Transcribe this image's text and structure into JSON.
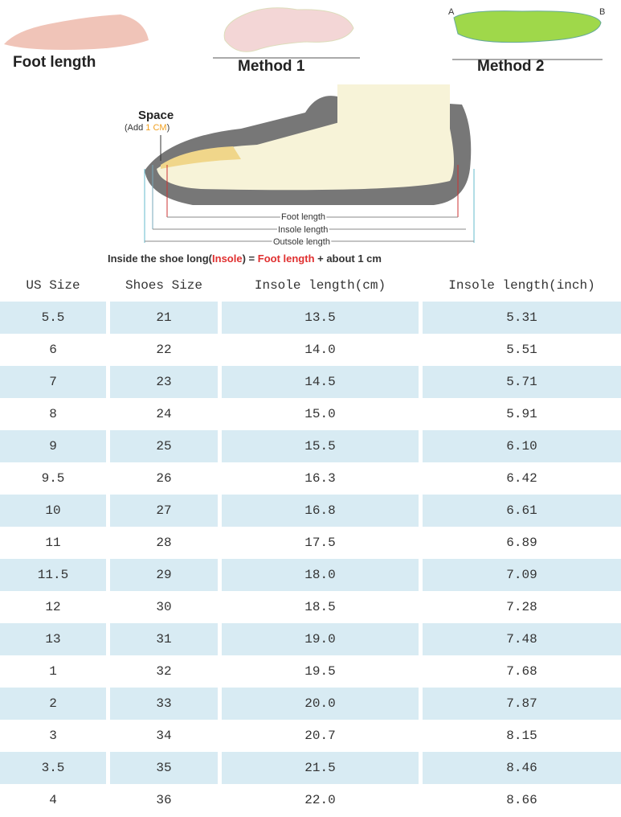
{
  "header": {
    "foot_length": "Foot length",
    "method_1": "Method 1",
    "method_2": "Method 2",
    "insole_end_a": "A",
    "insole_end_b": "B"
  },
  "diagram": {
    "space": "Space",
    "add_parts": [
      "(Add ",
      "1 CM",
      ")"
    ],
    "foot_length": "Foot length",
    "insole_length": "Insole length",
    "outsole_length": "Outsole length",
    "caption_parts": [
      "Inside the shoe long(",
      "Insole",
      ") = ",
      "Foot length",
      " + about ",
      "1 cm"
    ]
  },
  "table": {
    "columns": [
      "US Size",
      "Shoes Size",
      "Insole length(cm)",
      "Insole length(inch)"
    ],
    "rows": [
      [
        "5.5",
        "21",
        "13.5",
        "5.31"
      ],
      [
        "6",
        "22",
        "14.0",
        "5.51"
      ],
      [
        "7",
        "23",
        "14.5",
        "5.71"
      ],
      [
        "8",
        "24",
        "15.0",
        "5.91"
      ],
      [
        "9",
        "25",
        "15.5",
        "6.10"
      ],
      [
        "9.5",
        "26",
        "16.3",
        "6.42"
      ],
      [
        "10",
        "27",
        "16.8",
        "6.61"
      ],
      [
        "11",
        "28",
        "17.5",
        "6.89"
      ],
      [
        "11.5",
        "29",
        "18.0",
        "7.09"
      ],
      [
        "12",
        "30",
        "18.5",
        "7.28"
      ],
      [
        "13",
        "31",
        "19.0",
        "7.48"
      ],
      [
        "1",
        "32",
        "19.5",
        "7.68"
      ],
      [
        "2",
        "33",
        "20.0",
        "7.87"
      ],
      [
        "3",
        "34",
        "20.7",
        "8.15"
      ],
      [
        "3.5",
        "35",
        "21.5",
        "8.46"
      ],
      [
        "4",
        "36",
        "22.0",
        "8.66"
      ]
    ]
  }
}
